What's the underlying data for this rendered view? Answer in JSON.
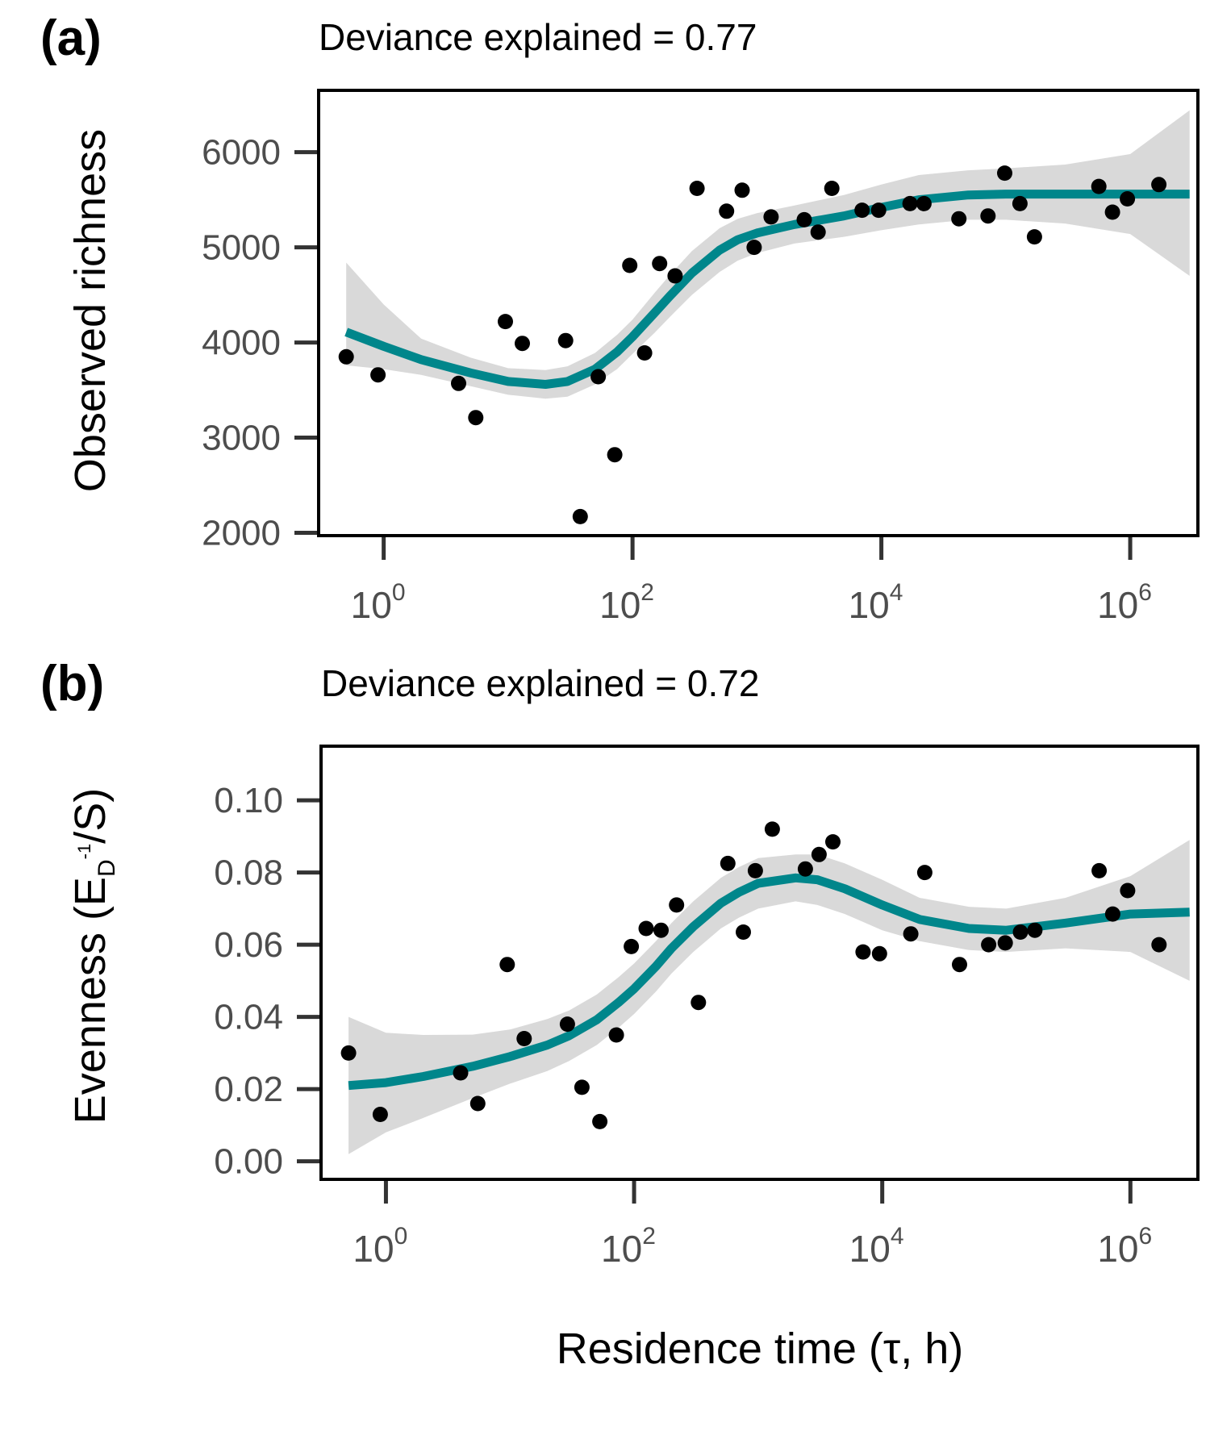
{
  "chart_data": [
    {
      "type": "scatter",
      "panel_label": "(a)",
      "subtitle": "Deviance explained = 0.77",
      "ylabel": "Observed richness",
      "xlabel": "",
      "x_scale": "log10",
      "xlim": [
        0.3,
        3500000
      ],
      "ylim": [
        1970,
        6650
      ],
      "yticks": [
        2000,
        3000,
        4000,
        5000,
        6000
      ],
      "ytick_labels": [
        "2000",
        "3000",
        "4000",
        "5000",
        "6000"
      ],
      "xticks": [
        {
          "value": 1,
          "base": "10",
          "exp": "0"
        },
        {
          "value": 100,
          "base": "10",
          "exp": "2"
        },
        {
          "value": 10000,
          "base": "10",
          "exp": "4"
        },
        {
          "value": 1000000,
          "base": "10",
          "exp": "6"
        }
      ],
      "grid": false,
      "colors": {
        "points": "#000000",
        "fit": "#00868B",
        "band": "#d9d9d9"
      },
      "points": [
        {
          "x": 0.5,
          "y": 3850
        },
        {
          "x": 0.9,
          "y": 3660
        },
        {
          "x": 4,
          "y": 3570
        },
        {
          "x": 5.5,
          "y": 3210
        },
        {
          "x": 9.5,
          "y": 4220
        },
        {
          "x": 13,
          "y": 3990
        },
        {
          "x": 29,
          "y": 4020
        },
        {
          "x": 38,
          "y": 2170
        },
        {
          "x": 53,
          "y": 3640
        },
        {
          "x": 72,
          "y": 2820
        },
        {
          "x": 95,
          "y": 4810
        },
        {
          "x": 125,
          "y": 3890
        },
        {
          "x": 165,
          "y": 4830
        },
        {
          "x": 220,
          "y": 4700
        },
        {
          "x": 330,
          "y": 5620
        },
        {
          "x": 570,
          "y": 5380
        },
        {
          "x": 760,
          "y": 5600
        },
        {
          "x": 950,
          "y": 5000
        },
        {
          "x": 1300,
          "y": 5320
        },
        {
          "x": 2400,
          "y": 5290
        },
        {
          "x": 3100,
          "y": 5160
        },
        {
          "x": 4000,
          "y": 5620
        },
        {
          "x": 7000,
          "y": 5390
        },
        {
          "x": 9500,
          "y": 5390
        },
        {
          "x": 17000,
          "y": 5460
        },
        {
          "x": 22000,
          "y": 5460
        },
        {
          "x": 42000,
          "y": 5300
        },
        {
          "x": 72000,
          "y": 5330
        },
        {
          "x": 98000,
          "y": 5780
        },
        {
          "x": 130000,
          "y": 5460
        },
        {
          "x": 170000,
          "y": 5110
        },
        {
          "x": 560000,
          "y": 5640
        },
        {
          "x": 720000,
          "y": 5370
        },
        {
          "x": 950000,
          "y": 5510
        },
        {
          "x": 1700000,
          "y": 5660
        }
      ],
      "fit": {
        "x": [
          0.5,
          1,
          2,
          5,
          10,
          20,
          30,
          50,
          75,
          100,
          150,
          200,
          300,
          500,
          700,
          1000,
          2000,
          5000,
          10000,
          20000,
          50000,
          100000,
          300000,
          1000000,
          3000000
        ],
        "y": [
          4110,
          3960,
          3820,
          3680,
          3590,
          3560,
          3590,
          3720,
          3900,
          4060,
          4310,
          4490,
          4730,
          4970,
          5080,
          5150,
          5240,
          5330,
          5420,
          5500,
          5550,
          5560,
          5560,
          5560,
          5560
        ],
        "lower": [
          3760,
          3720,
          3660,
          3540,
          3450,
          3410,
          3430,
          3560,
          3720,
          3880,
          4100,
          4270,
          4500,
          4740,
          4860,
          4940,
          5040,
          5110,
          5180,
          5240,
          5290,
          5290,
          5250,
          5140,
          4700
        ],
        "upper": [
          4840,
          4400,
          4040,
          3840,
          3730,
          3710,
          3750,
          3890,
          4080,
          4240,
          4520,
          4710,
          4960,
          5200,
          5300,
          5360,
          5440,
          5550,
          5660,
          5760,
          5810,
          5830,
          5870,
          5980,
          6440
        ]
      }
    },
    {
      "type": "scatter",
      "panel_label": "(b)",
      "subtitle": "Deviance explained = 0.72",
      "ylabel_main": "Evenness (E",
      "ylabel_sub": "D",
      "ylabel_sup": "-1",
      "ylabel_end": "/S)",
      "xlabel": "Residence time (τ, h)",
      "x_scale": "log10",
      "xlim": [
        0.3,
        3500000
      ],
      "ylim": [
        -0.005,
        0.115
      ],
      "yticks": [
        0,
        0.02,
        0.04,
        0.06,
        0.08,
        0.1
      ],
      "ytick_labels": [
        "0.00",
        "0.02",
        "0.04",
        "0.06",
        "0.08",
        "0.10"
      ],
      "xticks": [
        {
          "value": 1,
          "base": "10",
          "exp": "0"
        },
        {
          "value": 100,
          "base": "10",
          "exp": "2"
        },
        {
          "value": 10000,
          "base": "10",
          "exp": "4"
        },
        {
          "value": 1000000,
          "base": "10",
          "exp": "6"
        }
      ],
      "grid": false,
      "colors": {
        "points": "#000000",
        "fit": "#00868B",
        "band": "#d9d9d9"
      },
      "points": [
        {
          "x": 0.5,
          "y": 0.03
        },
        {
          "x": 0.9,
          "y": 0.013
        },
        {
          "x": 4,
          "y": 0.0245
        },
        {
          "x": 5.5,
          "y": 0.016
        },
        {
          "x": 9.5,
          "y": 0.0545
        },
        {
          "x": 13,
          "y": 0.034
        },
        {
          "x": 29,
          "y": 0.038
        },
        {
          "x": 38,
          "y": 0.0205
        },
        {
          "x": 53,
          "y": 0.011
        },
        {
          "x": 72,
          "y": 0.035
        },
        {
          "x": 95,
          "y": 0.0595
        },
        {
          "x": 125,
          "y": 0.0645
        },
        {
          "x": 165,
          "y": 0.064
        },
        {
          "x": 220,
          "y": 0.071
        },
        {
          "x": 330,
          "y": 0.044
        },
        {
          "x": 570,
          "y": 0.0825
        },
        {
          "x": 760,
          "y": 0.0635
        },
        {
          "x": 950,
          "y": 0.0805
        },
        {
          "x": 1300,
          "y": 0.092
        },
        {
          "x": 2400,
          "y": 0.081
        },
        {
          "x": 3100,
          "y": 0.085
        },
        {
          "x": 4000,
          "y": 0.0885
        },
        {
          "x": 7000,
          "y": 0.058
        },
        {
          "x": 9500,
          "y": 0.0575
        },
        {
          "x": 17000,
          "y": 0.063
        },
        {
          "x": 22000,
          "y": 0.08
        },
        {
          "x": 42000,
          "y": 0.0545
        },
        {
          "x": 72000,
          "y": 0.06
        },
        {
          "x": 98000,
          "y": 0.0605
        },
        {
          "x": 130000,
          "y": 0.0635
        },
        {
          "x": 170000,
          "y": 0.064
        },
        {
          "x": 560000,
          "y": 0.0805
        },
        {
          "x": 720000,
          "y": 0.0685
        },
        {
          "x": 950000,
          "y": 0.075
        },
        {
          "x": 1700000,
          "y": 0.06
        }
      ],
      "fit": {
        "x": [
          0.5,
          1,
          2,
          5,
          10,
          20,
          30,
          50,
          75,
          100,
          150,
          200,
          300,
          500,
          700,
          1000,
          2000,
          3000,
          5000,
          10000,
          20000,
          50000,
          100000,
          300000,
          1000000,
          3000000
        ],
        "y": [
          0.021,
          0.0218,
          0.0235,
          0.0263,
          0.029,
          0.0322,
          0.0348,
          0.0392,
          0.044,
          0.0478,
          0.054,
          0.059,
          0.065,
          0.0715,
          0.0745,
          0.077,
          0.0785,
          0.078,
          0.0755,
          0.071,
          0.067,
          0.0645,
          0.064,
          0.066,
          0.0685,
          0.069
        ],
        "lower": [
          0.002,
          0.008,
          0.012,
          0.0175,
          0.0215,
          0.025,
          0.0278,
          0.0322,
          0.037,
          0.0408,
          0.047,
          0.052,
          0.058,
          0.0645,
          0.0675,
          0.07,
          0.072,
          0.071,
          0.0685,
          0.064,
          0.061,
          0.0585,
          0.058,
          0.059,
          0.058,
          0.05
        ],
        "upper": [
          0.04,
          0.0356,
          0.035,
          0.0351,
          0.0365,
          0.0394,
          0.0418,
          0.0462,
          0.051,
          0.0548,
          0.061,
          0.066,
          0.072,
          0.0785,
          0.0815,
          0.084,
          0.085,
          0.085,
          0.0825,
          0.078,
          0.073,
          0.0705,
          0.07,
          0.073,
          0.079,
          0.089
        ]
      }
    }
  ]
}
